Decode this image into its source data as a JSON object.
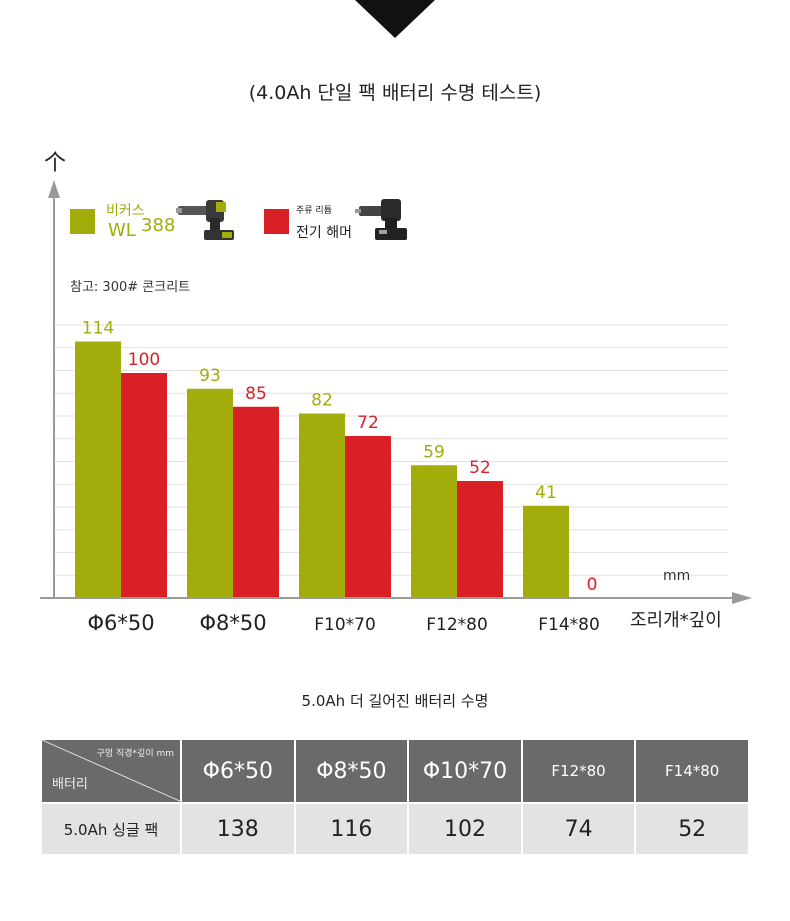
{
  "chart_data": {
    "type": "bar",
    "title": "(4.0Ah 단일 팩 배터리 수명 테스트)",
    "ylabel": "个",
    "xlabel": "조리개*깊이",
    "unit_label": "mm",
    "note": "참고: 300# 콘크리트",
    "categories": [
      "Φ6*50",
      "Φ8*50",
      "F10*70",
      "F12*80",
      "F14*80"
    ],
    "series": [
      {
        "name": "비커스 WL388",
        "color": "#a2ac0b",
        "values": [
          114,
          93,
          82,
          59,
          41
        ]
      },
      {
        "name": "주류 리튬 전기 해머",
        "color": "#d92027",
        "values": [
          100,
          85,
          72,
          52,
          0
        ]
      }
    ],
    "ylim": [
      0,
      125
    ],
    "grid": true,
    "legend_position": "top-left"
  },
  "legend": {
    "a_line1": "비커스",
    "a_line2": "WL",
    "a_model": "388",
    "b_line1": "주류 리튬",
    "b_line2": "전기 해머"
  },
  "table": {
    "title": "5.0Ah 더 길어진 배터리 수명",
    "corner_top": "구멍 직경*깊이 mm",
    "corner_bottom": "배터리",
    "headers": [
      "Φ6*50",
      "Φ8*50",
      "Φ10*70",
      "F12*80",
      "F14*80"
    ],
    "row_label": "5.0Ah 싱글 팩",
    "values": [
      "138",
      "116",
      "102",
      "74",
      "52"
    ]
  },
  "colors": {
    "green": "#a2ac0b",
    "red": "#d92027",
    "axis": "#999999",
    "header_bg": "#6a6a6a",
    "cell_bg": "#e3e3e3"
  }
}
